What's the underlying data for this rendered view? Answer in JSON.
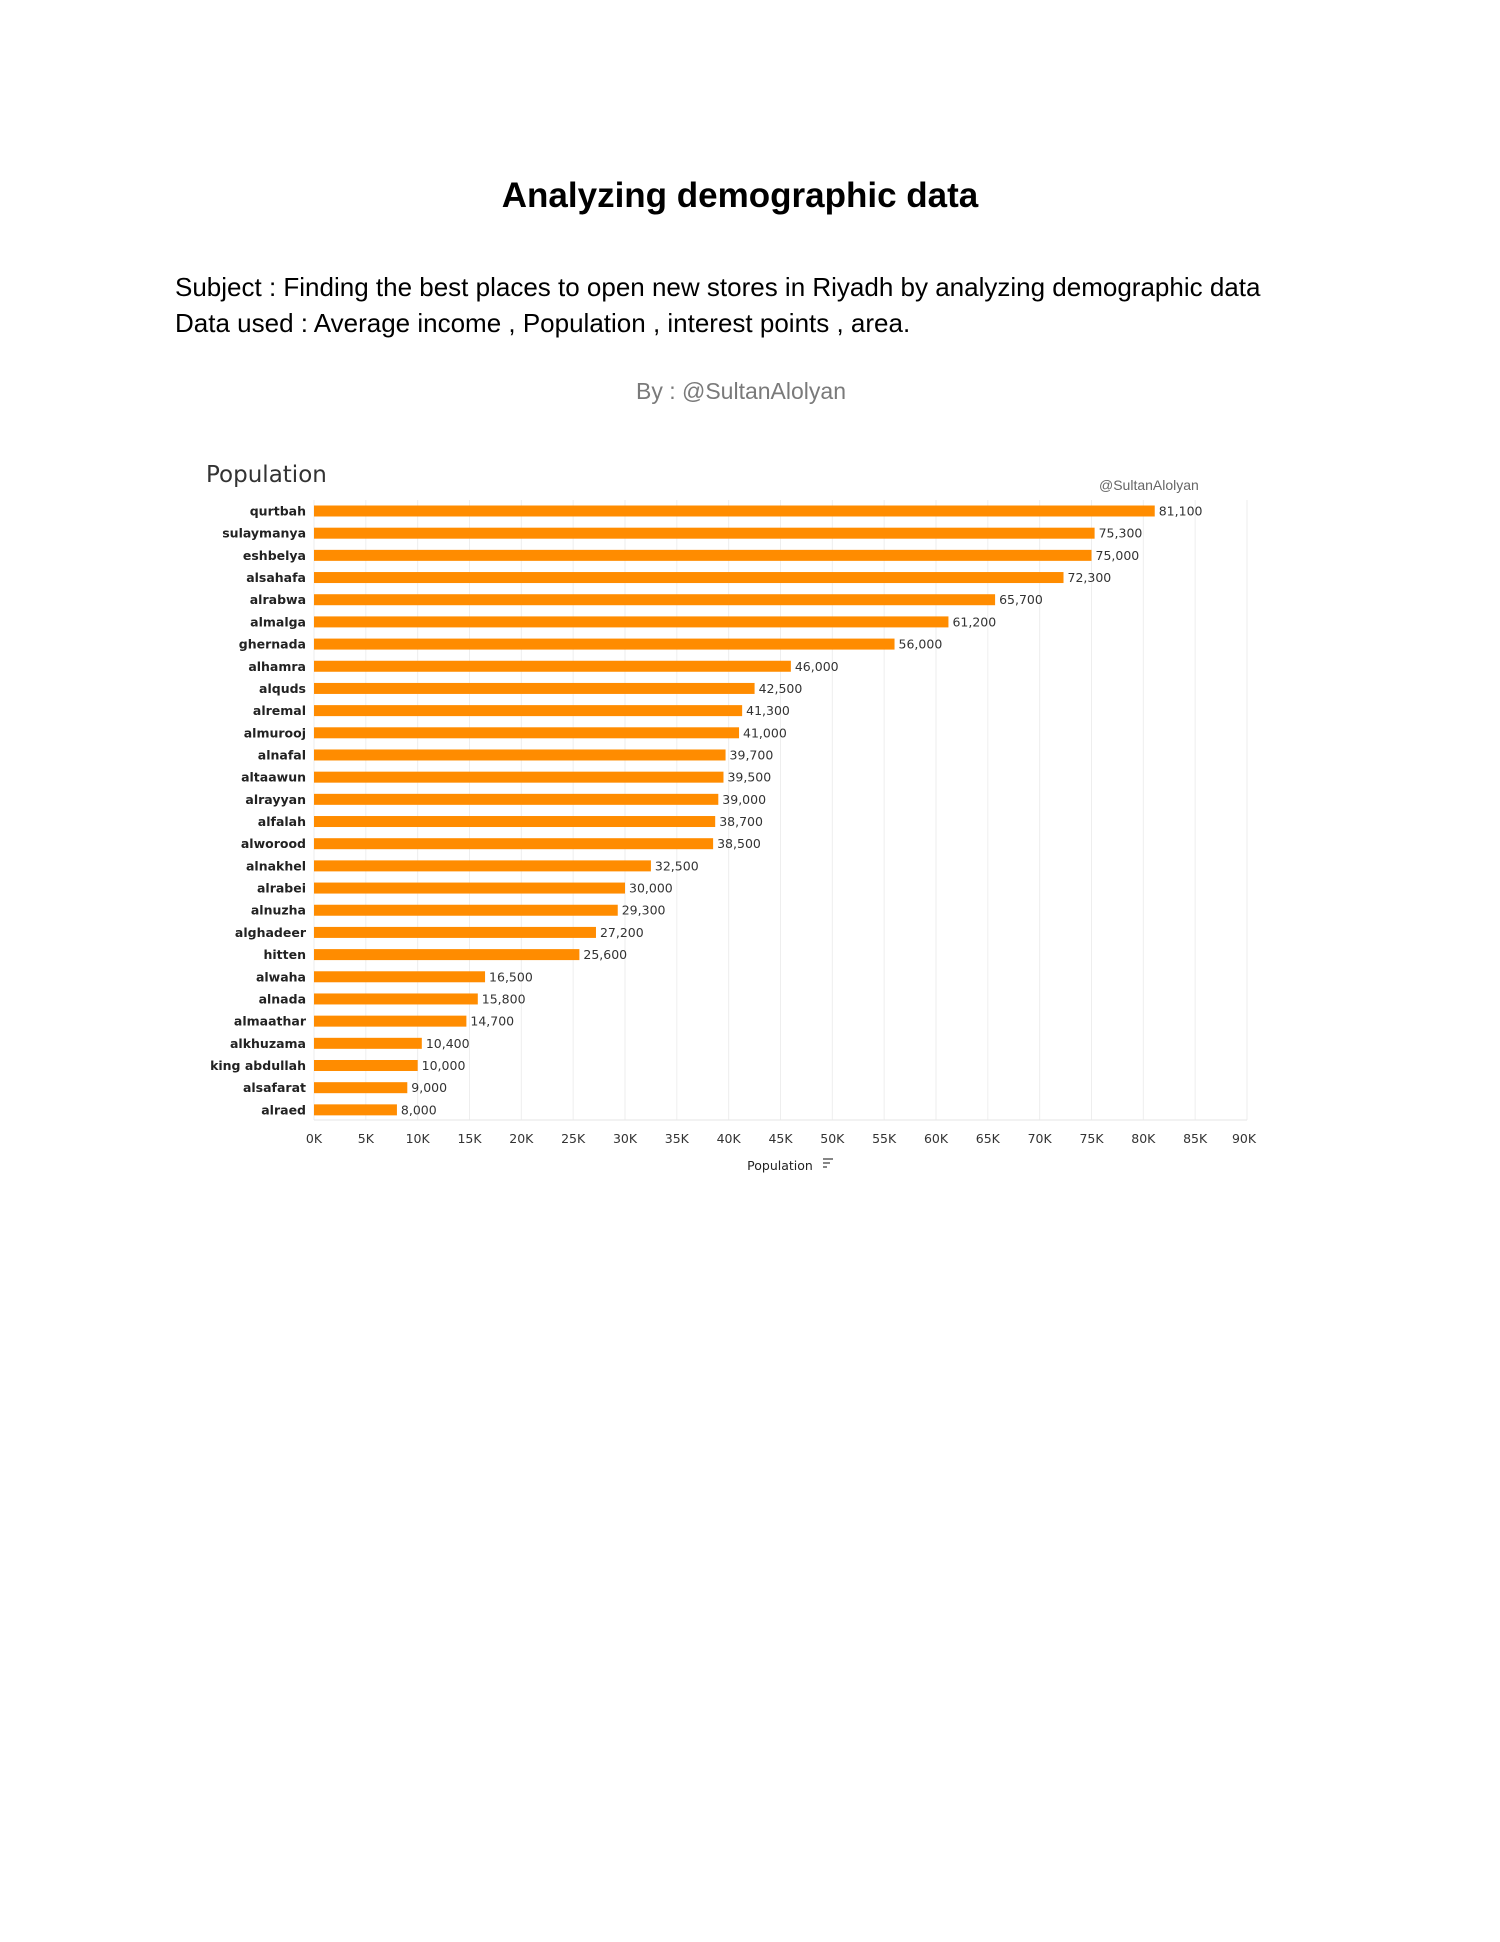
{
  "header": {
    "title": "Analyzing demographic data",
    "subject": "Subject : Finding the best places to open new stores  in Riyadh by analyzing demographic data",
    "data_used": "Data used : Average income , Population , interest points , area.",
    "byline": "By : @SultanAlolyan"
  },
  "chart_data": {
    "type": "bar",
    "orientation": "horizontal",
    "title": "Population",
    "credit": "@SultanAlolyan",
    "xlabel": "Population",
    "xlabel_icon": "sort-icon",
    "bar_color": "#FF8C00",
    "xlim": [
      0,
      90000
    ],
    "grid": true,
    "ticks": [
      "0K",
      "5K",
      "10K",
      "15K",
      "20K",
      "25K",
      "30K",
      "35K",
      "40K",
      "45K",
      "50K",
      "55K",
      "60K",
      "65K",
      "70K",
      "75K",
      "80K",
      "85K",
      "90K"
    ],
    "categories": [
      "qurtbah",
      "sulaymanya",
      "eshbelya",
      "alsahafa",
      "alrabwa",
      "almalga",
      "ghernada",
      "alhamra",
      "alquds",
      "alremal",
      "almurooj",
      "alnafal",
      "altaawun",
      "alrayyan",
      "alfalah",
      "alworood",
      "alnakhel",
      "alrabei",
      "alnuzha",
      "alghadeer",
      "hitten",
      "alwaha",
      "alnada",
      "almaathar",
      "alkhuzama",
      "king abdullah",
      "alsafarat",
      "alraed"
    ],
    "values": [
      81100,
      75300,
      75000,
      72300,
      65700,
      61200,
      56000,
      46000,
      42500,
      41300,
      41000,
      39700,
      39500,
      39000,
      38700,
      38500,
      32500,
      30000,
      29300,
      27200,
      25600,
      16500,
      15800,
      14700,
      10400,
      10000,
      9000,
      8000
    ],
    "labels": [
      "81,100",
      "75,300",
      "75,000",
      "72,300",
      "65,700",
      "61,200",
      "56,000",
      "46,000",
      "42,500",
      "41,300",
      "41,000",
      "39,700",
      "39,500",
      "39,000",
      "38,700",
      "38,500",
      "32,500",
      "30,000",
      "29,300",
      "27,200",
      "25,600",
      "16,500",
      "15,800",
      "14,700",
      "10,400",
      "10,000",
      "9,000",
      "8,000"
    ]
  }
}
